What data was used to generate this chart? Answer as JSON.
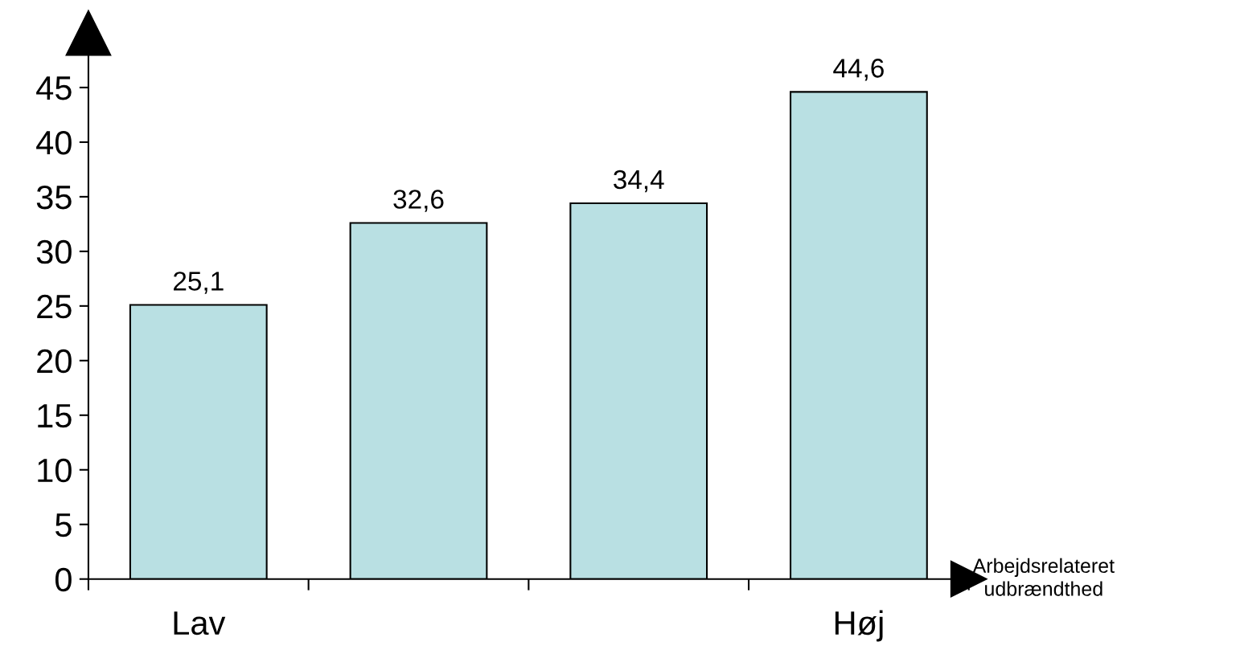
{
  "chart_data": {
    "type": "bar",
    "categories": [
      "Lav",
      null,
      null,
      "Høj"
    ],
    "values": [
      25.1,
      32.6,
      34.4,
      44.6
    ],
    "value_labels": [
      "25,1",
      "32,6",
      "34,4",
      "44,6"
    ],
    "color": "#b9e0e3",
    "xlabel": "Arbejdsrelateret\nudbrændthed",
    "ylim": [
      0,
      50
    ],
    "yticks": [
      0,
      5,
      10,
      15,
      20,
      25,
      30,
      35,
      40,
      45
    ],
    "grid": false,
    "legend": false
  }
}
